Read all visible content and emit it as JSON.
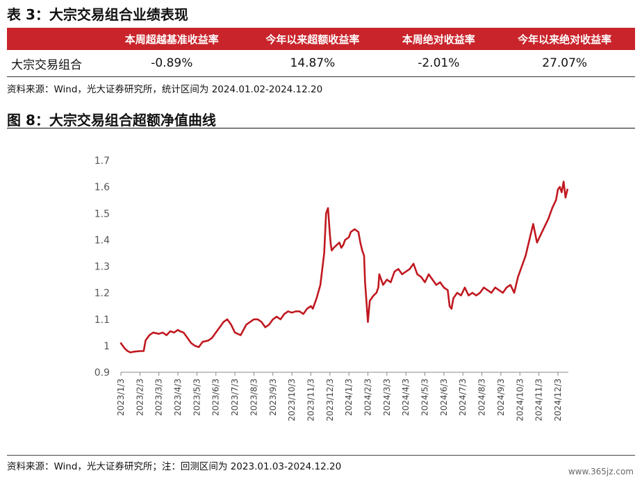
{
  "table_section": {
    "title": "表 3：大宗交易组合业绩表现",
    "headers": [
      "",
      "本周超越基准收益率",
      "今年以来超额收益率",
      "本周绝对收益率",
      "今年以来绝对收益率"
    ],
    "rows": [
      {
        "label": "大宗交易组合",
        "values": [
          "-0.89%",
          "14.87%",
          "-2.01%",
          "27.07%"
        ]
      }
    ],
    "source": "资料来源：Wind，光大证券研究所，统计区间为 2024.01.02-2024.12.20"
  },
  "figure_section": {
    "title": "图 8：大宗交易组合超额净值曲线",
    "source": "资料来源：Wind，光大证券研究所；注：回测区间为 2023.01.03-2024.12.20"
  },
  "watermark": "www.365jz.com",
  "chart_data": {
    "type": "line",
    "title": "",
    "xlabel": "",
    "ylabel": "",
    "x_tick_labels": [
      "2023/1/3",
      "2023/2/3",
      "2023/3/3",
      "2023/4/3",
      "2023/5/3",
      "2023/6/3",
      "2023/7/3",
      "2023/8/3",
      "2023/9/3",
      "2023/10/3",
      "2023/11/3",
      "2023/12/3",
      "2024/1/3",
      "2024/2/3",
      "2024/3/3",
      "2024/4/3",
      "2024/5/3",
      "2024/6/3",
      "2024/7/3",
      "2024/8/3",
      "2024/9/3",
      "2024/10/3",
      "2024/11/3",
      "2024/12/3"
    ],
    "y_tick_labels": [
      "0.9",
      "1",
      "1.1",
      "1.2",
      "1.3",
      "1.4",
      "1.5",
      "1.6",
      "1.7"
    ],
    "ylim": [
      0.9,
      1.7
    ],
    "xlim": [
      0,
      23.55
    ],
    "grid": false,
    "line_color": "#c0181f",
    "series": [
      {
        "x": [
          0,
          0.1,
          0.2,
          0.35,
          0.5,
          0.7,
          1.0,
          1.2,
          1.3,
          1.5,
          1.7,
          2.0,
          2.2,
          2.4,
          2.6,
          2.8,
          3.0,
          3.1,
          3.3,
          3.5,
          3.7,
          3.9,
          4.1,
          4.3,
          4.6,
          4.8,
          5.0,
          5.2,
          5.4,
          5.6,
          5.8,
          6.0,
          6.3,
          6.6,
          6.8,
          7.0,
          7.2,
          7.4,
          7.6,
          7.8,
          8.0,
          8.2,
          8.4,
          8.6,
          8.8,
          9.0,
          9.2,
          9.4,
          9.6,
          9.8,
          10.0,
          10.1,
          10.3,
          10.5,
          10.7,
          10.8,
          10.9,
          11.0,
          11.05,
          11.1,
          11.2,
          11.35,
          11.5,
          11.6,
          11.7,
          11.8,
          12.0,
          12.1,
          12.3,
          12.5,
          12.6,
          12.7,
          12.8,
          12.85,
          12.9,
          13.0,
          13.1,
          13.3,
          13.45,
          13.55,
          13.6,
          13.8,
          14.0,
          14.2,
          14.4,
          14.6,
          14.8,
          15.0,
          15.2,
          15.4,
          15.6,
          15.8,
          16.0,
          16.2,
          16.4,
          16.6,
          16.8,
          17.0,
          17.2,
          17.3,
          17.4,
          17.5,
          17.7,
          17.9,
          18.1,
          18.3,
          18.5,
          18.7,
          18.9,
          19.1,
          19.3,
          19.5,
          19.7,
          19.9,
          20.1,
          20.3,
          20.5,
          20.7,
          20.9,
          21.0,
          21.1,
          21.3,
          21.5,
          21.7,
          21.9,
          22.1,
          22.3,
          22.5,
          22.7,
          22.9,
          23.0,
          23.1,
          23.2,
          23.3,
          23.4,
          23.5
        ],
        "y": [
          1.01,
          1.0,
          0.99,
          0.98,
          0.975,
          0.978,
          0.98,
          0.98,
          1.02,
          1.04,
          1.05,
          1.045,
          1.05,
          1.04,
          1.055,
          1.05,
          1.06,
          1.055,
          1.05,
          1.03,
          1.01,
          1.0,
          0.995,
          1.015,
          1.02,
          1.03,
          1.05,
          1.07,
          1.09,
          1.1,
          1.08,
          1.05,
          1.04,
          1.08,
          1.09,
          1.1,
          1.1,
          1.09,
          1.07,
          1.08,
          1.1,
          1.11,
          1.1,
          1.12,
          1.13,
          1.125,
          1.13,
          1.13,
          1.12,
          1.14,
          1.15,
          1.14,
          1.18,
          1.23,
          1.35,
          1.5,
          1.52,
          1.42,
          1.38,
          1.36,
          1.37,
          1.38,
          1.39,
          1.37,
          1.38,
          1.4,
          1.41,
          1.43,
          1.44,
          1.43,
          1.39,
          1.36,
          1.34,
          1.24,
          1.19,
          1.09,
          1.17,
          1.19,
          1.2,
          1.22,
          1.27,
          1.23,
          1.25,
          1.24,
          1.28,
          1.29,
          1.27,
          1.28,
          1.29,
          1.31,
          1.27,
          1.26,
          1.24,
          1.27,
          1.25,
          1.23,
          1.24,
          1.22,
          1.21,
          1.15,
          1.14,
          1.18,
          1.2,
          1.19,
          1.22,
          1.19,
          1.2,
          1.19,
          1.2,
          1.22,
          1.21,
          1.2,
          1.22,
          1.21,
          1.2,
          1.22,
          1.23,
          1.2,
          1.26,
          1.28,
          1.3,
          1.34,
          1.4,
          1.46,
          1.39,
          1.42,
          1.45,
          1.48,
          1.52,
          1.55,
          1.59,
          1.6,
          1.58,
          1.62,
          1.56,
          1.59
        ]
      }
    ]
  }
}
